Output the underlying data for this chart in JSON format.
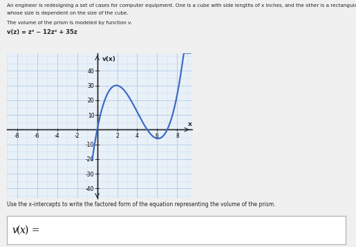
{
  "xlabel": "x",
  "ylabel": "v(x)",
  "xlim": [
    -9,
    9.5
  ],
  "ylim": [
    -47,
    52
  ],
  "xticks": [
    -8,
    -6,
    -4,
    -2,
    2,
    4,
    6,
    8
  ],
  "yticks": [
    -40,
    -30,
    -20,
    -10,
    10,
    20,
    30,
    40
  ],
  "curve_color": "#3a6bc4",
  "grid_major_color": "#b8cfe8",
  "grid_minor_color": "#d0e0f0",
  "background_color": "#e8f0f8",
  "axis_color": "#222222",
  "page_bg": "#f0f0f0",
  "header_line1": "An engineer is redesigning a set of cases for computer equipment. One is a cube with side lengths of x inches, and the other is a rectangular prism",
  "header_line2": "whose size is dependent on the size of the cube.",
  "header_line3": "The volume of the prism is modeled by function v.",
  "formula_line": "v(z) = z³ − 12z² + 35z",
  "footer_text": "Use the x-intercepts to write the factored form of the equation representing the volume of the prism.",
  "answer_label": "v(x) ="
}
